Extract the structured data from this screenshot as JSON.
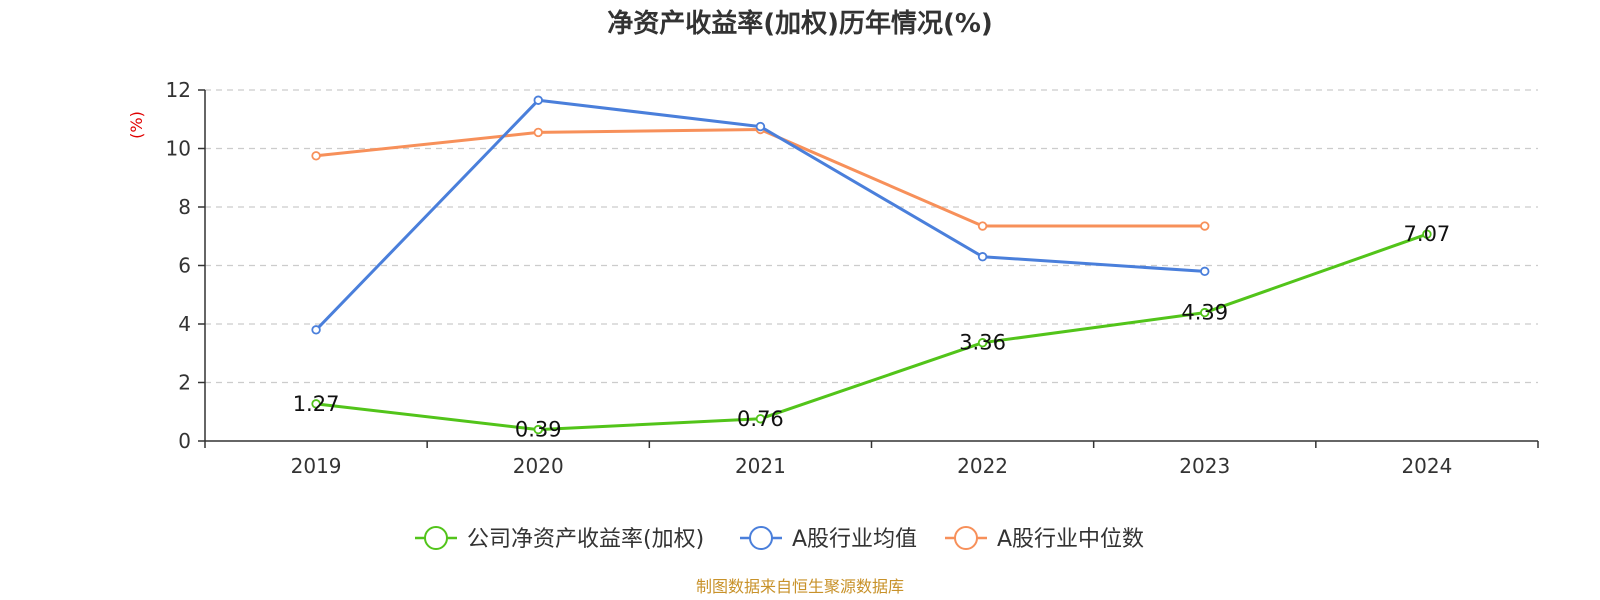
{
  "chart_data": {
    "type": "line",
    "title": "净资产收益率(加权)历年情况(%)",
    "ylabel": "(%)",
    "categories": [
      "2019",
      "2020",
      "2021",
      "2022",
      "2023",
      "2024"
    ],
    "ylim": [
      0,
      12
    ],
    "yticks": [
      "0",
      "2",
      "4",
      "6",
      "8",
      "10",
      "12"
    ],
    "grid": true,
    "legend_position": "bottom",
    "series": [
      {
        "name": "公司净资产收益率(加权)",
        "color": "#52c41a",
        "values": [
          1.27,
          0.39,
          0.76,
          3.36,
          4.39,
          7.07
        ],
        "labels": [
          "1.27",
          "0.39",
          "0.76",
          "3.36",
          "4.39",
          "7.07"
        ]
      },
      {
        "name": "A股行业均值",
        "color": "#4a7fdb",
        "values": [
          3.8,
          11.65,
          10.75,
          6.3,
          5.8,
          null
        ]
      },
      {
        "name": "A股行业中位数",
        "color": "#f7905a",
        "values": [
          9.75,
          10.55,
          10.65,
          7.35,
          7.35,
          null
        ]
      }
    ]
  },
  "source": "制图数据来自恒生聚源数据库"
}
